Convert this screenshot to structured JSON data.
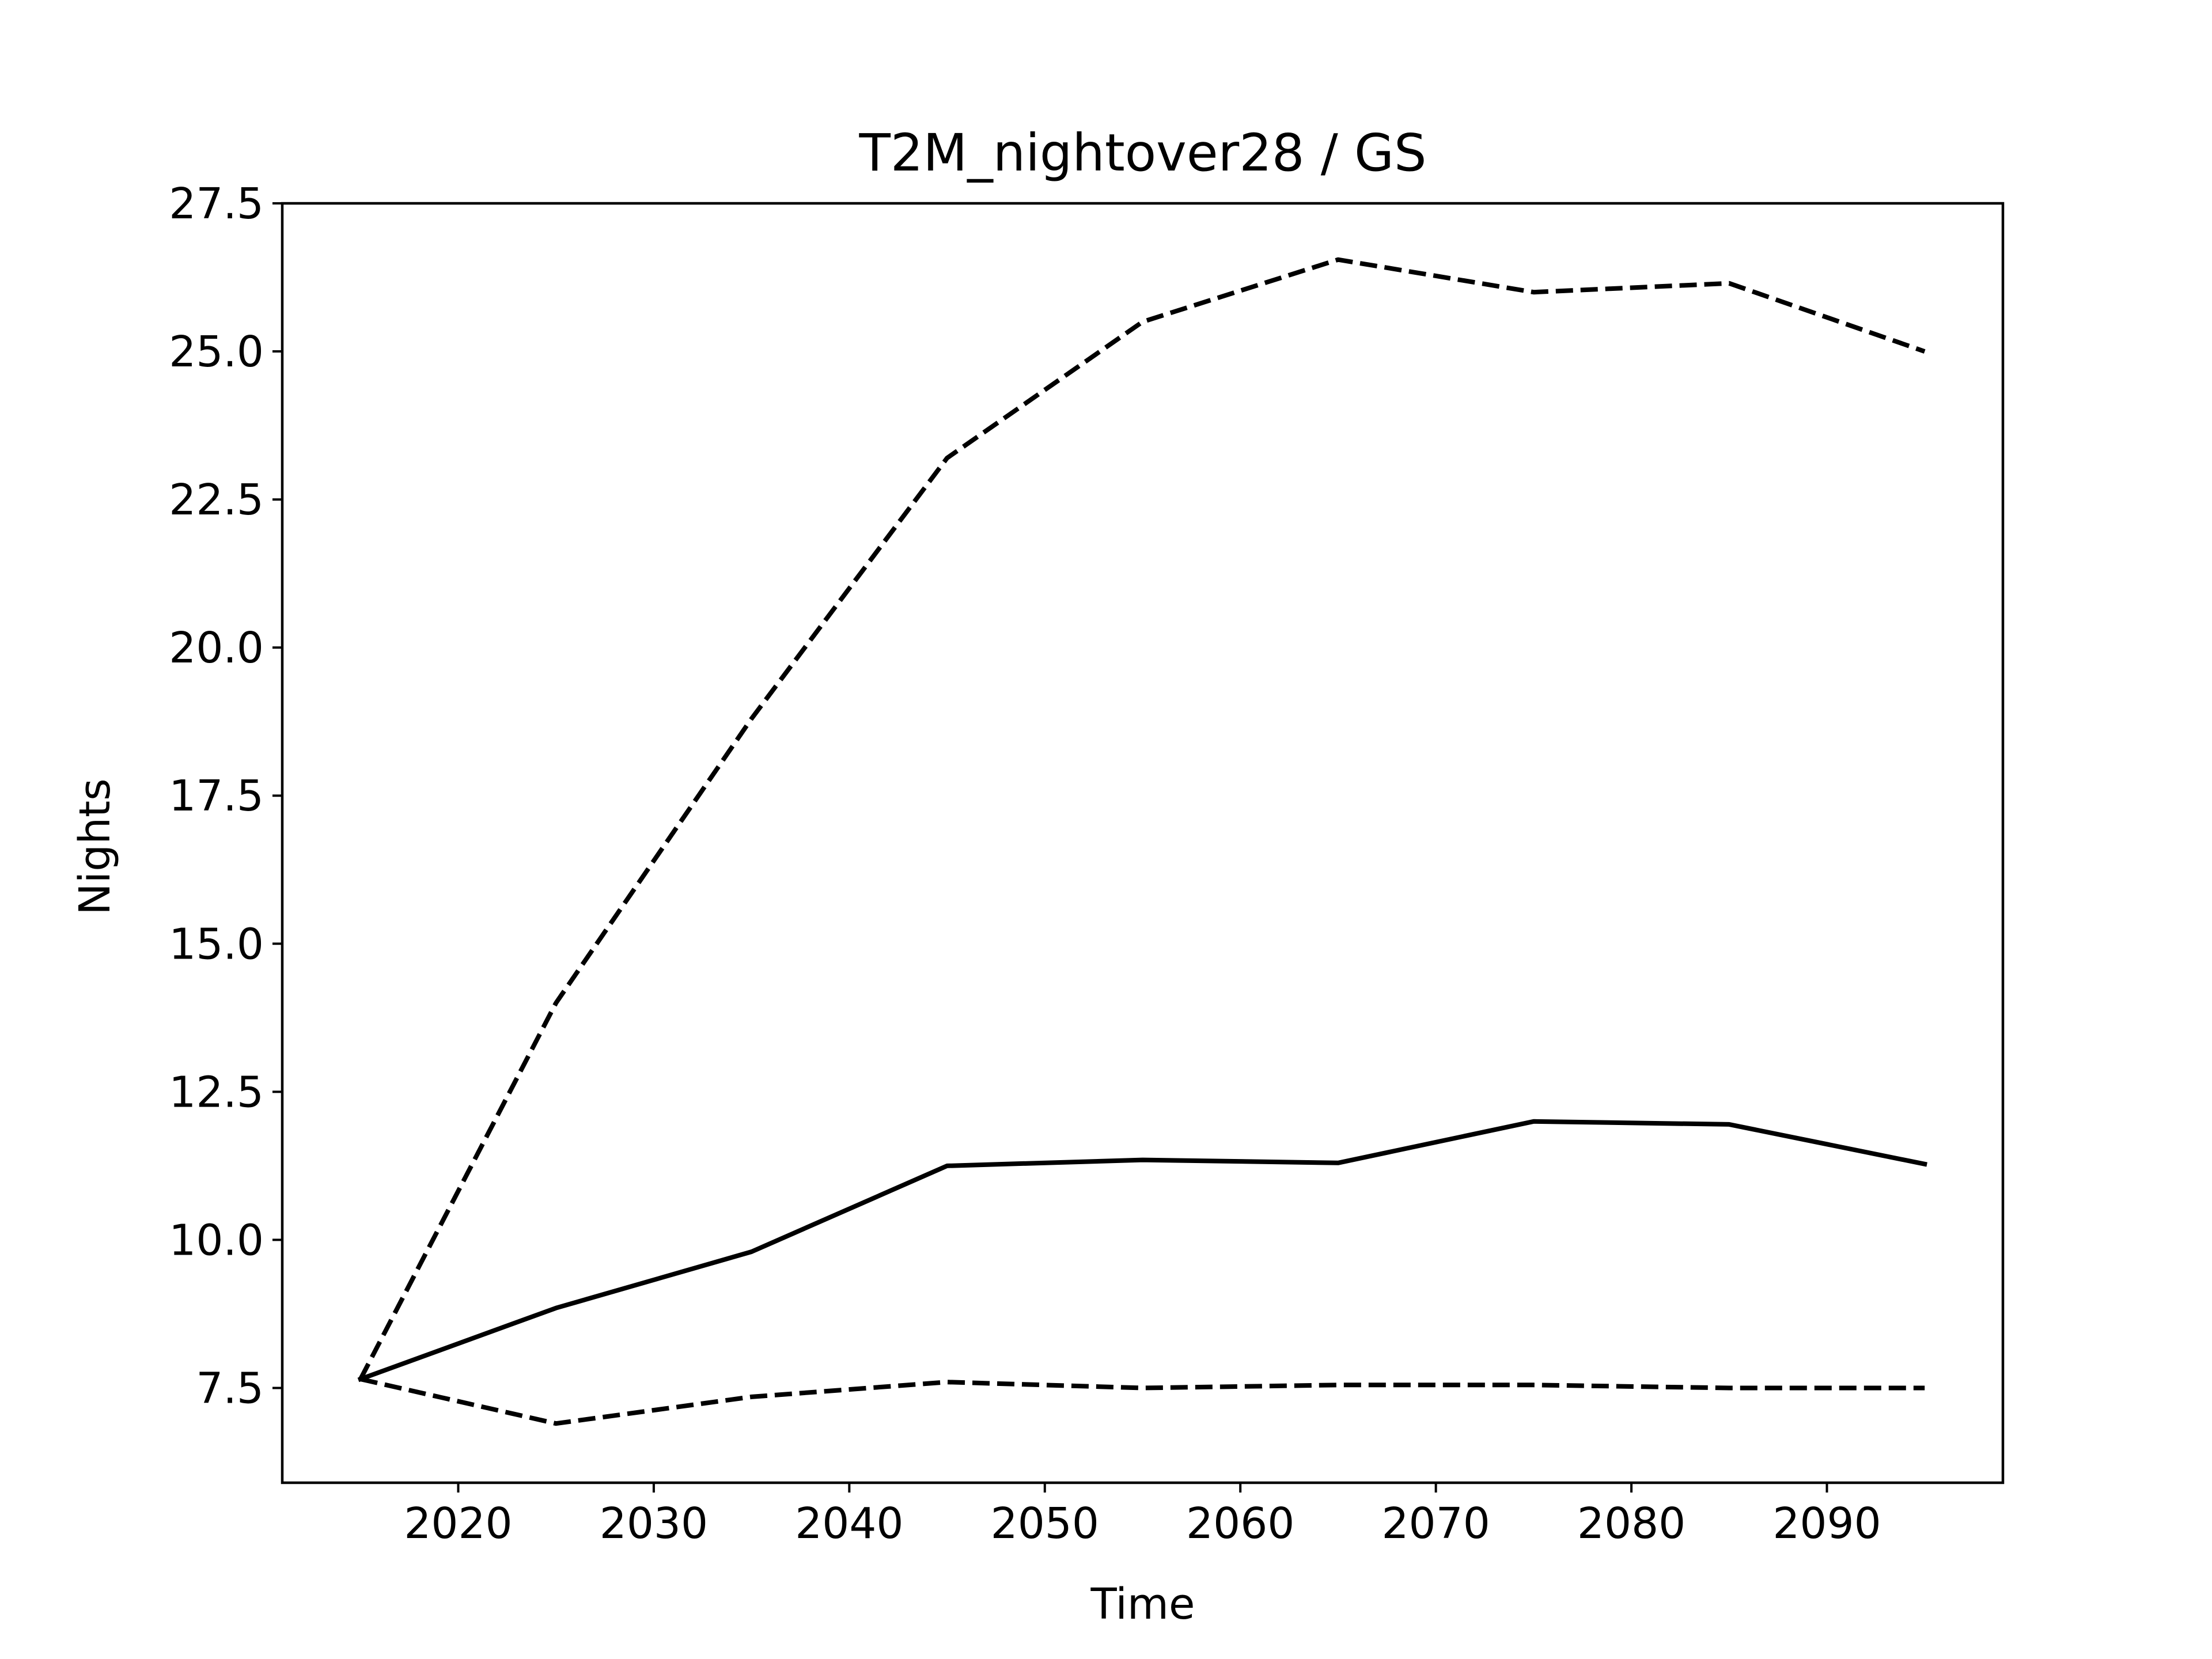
{
  "chart_data": {
    "type": "line",
    "title": "T2M_nightover28 / GS",
    "xlabel": "Time",
    "ylabel": "Nights",
    "xlim": [
      2011,
      2099
    ],
    "ylim": [
      5.9,
      27.5
    ],
    "xticks": [
      2020,
      2030,
      2040,
      2050,
      2060,
      2070,
      2080,
      2090
    ],
    "xtick_labels": [
      "2020",
      "2030",
      "2040",
      "2050",
      "2060",
      "2070",
      "2080",
      "2090"
    ],
    "yticks": [
      7.5,
      10.0,
      12.5,
      15.0,
      17.5,
      20.0,
      22.5,
      25.0,
      27.5
    ],
    "ytick_labels": [
      "7.5",
      "10.0",
      "12.5",
      "15.0",
      "17.5",
      "20.0",
      "22.5",
      "25.0",
      "27.5"
    ],
    "x": [
      2015,
      2025,
      2035,
      2045,
      2055,
      2065,
      2075,
      2085,
      2095
    ],
    "series": [
      {
        "style": "solid",
        "color": "#000000",
        "values": [
          7.65,
          8.85,
          9.8,
          11.25,
          11.35,
          11.3,
          12.0,
          11.95,
          11.28
        ]
      },
      {
        "style": "dashed",
        "color": "#000000",
        "values": [
          7.65,
          14.0,
          18.8,
          23.2,
          25.5,
          26.55,
          26.0,
          26.15,
          25.0
        ]
      },
      {
        "style": "dashed",
        "color": "#000000",
        "values": [
          7.65,
          6.9,
          7.35,
          7.6,
          7.5,
          7.55,
          7.55,
          7.5,
          7.5
        ]
      }
    ],
    "grid": false,
    "legend": "none"
  }
}
